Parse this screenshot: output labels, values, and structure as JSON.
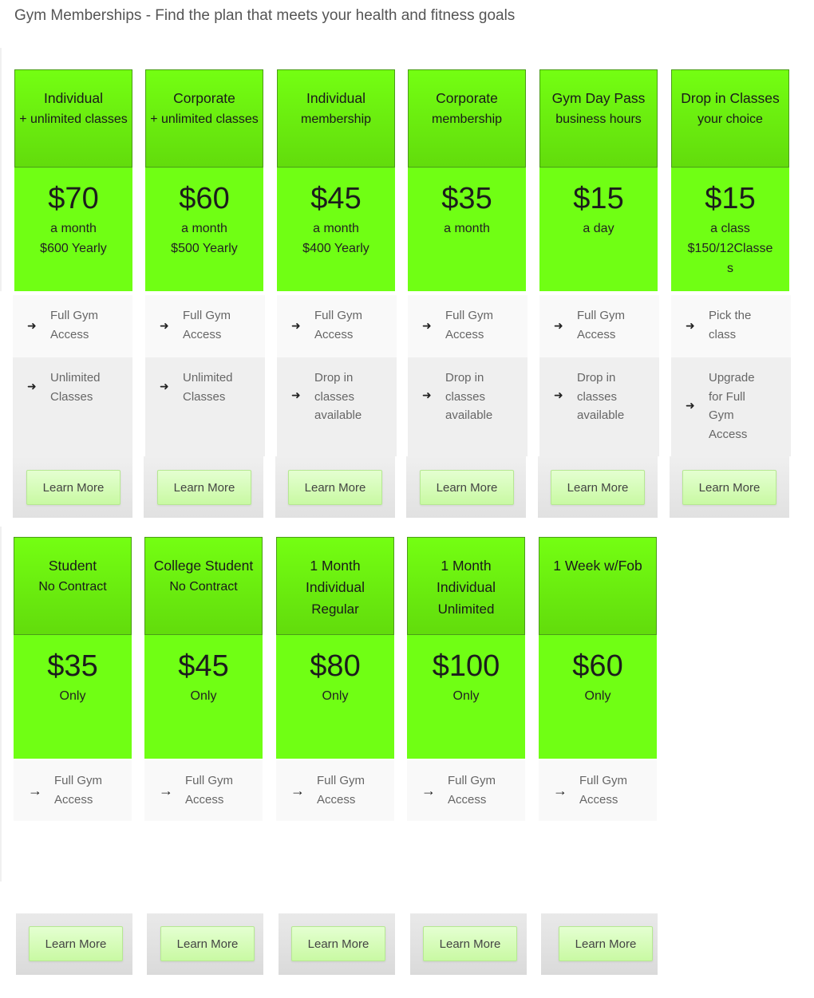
{
  "page_title": "Gym Memberships - Find the plan that meets your health and fitness goals",
  "colors": {
    "accent_green": "#70ff14",
    "button_green": "#c9f9a3"
  },
  "row1": [
    {
      "title": "Individual",
      "subtitle": "+ unlimited classes",
      "price": "$70",
      "period": "a month",
      "yearly": "$600 Yearly",
      "features": [
        "Full Gym Access",
        "Unlimited Classes"
      ],
      "button": "Learn More"
    },
    {
      "title": "Corporate",
      "subtitle": "+ unlimited classes",
      "price": "$60",
      "period": "a month",
      "yearly": "$500 Yearly",
      "features": [
        "Full Gym Access",
        "Unlimited Classes"
      ],
      "button": "Learn More"
    },
    {
      "title": "Individual",
      "subtitle": "membership",
      "price": "$45",
      "period": "a month",
      "yearly": "$400 Yearly",
      "features": [
        "Full Gym Access",
        "Drop in classes available"
      ],
      "button": "Learn More"
    },
    {
      "title": "Corporate",
      "subtitle": "membership",
      "price": "$35",
      "period": "a month",
      "yearly": "",
      "features": [
        "Full Gym Access",
        "Drop in classes available"
      ],
      "button": "Learn More"
    },
    {
      "title": "Gym Day Pass",
      "subtitle": "business hours",
      "price": "$15",
      "period": "a day",
      "yearly": "",
      "features": [
        "Full Gym Access",
        "Drop in classes available"
      ],
      "button": "Learn More"
    },
    {
      "title": "Drop in Classes",
      "subtitle": "your choice",
      "price": "$15",
      "period": "a class",
      "yearly": "$150/12Classes",
      "features": [
        "Pick the class",
        "Upgrade for Full Gym Access"
      ],
      "button": "Learn More"
    }
  ],
  "row2": [
    {
      "title": "Student",
      "subtitle": "No Contract",
      "price": "$35",
      "period": "Only",
      "features": [
        "Full Gym Access"
      ],
      "button": "Learn More"
    },
    {
      "title": "College Student",
      "subtitle": "No Contract",
      "price": "$45",
      "period": "Only",
      "features": [
        "Full Gym Access"
      ],
      "button": "Learn More"
    },
    {
      "title": "1 Month",
      "subtitle": "Individual",
      "subtitle2": "Regular",
      "price": "$80",
      "period": "Only",
      "features": [
        "Full Gym Access"
      ],
      "button": "Learn More"
    },
    {
      "title": "1 Month",
      "subtitle": "Individual",
      "subtitle2": "Unlimited",
      "price": "$100",
      "period": "Only",
      "features": [
        "Full Gym Access"
      ],
      "button": "Learn More"
    },
    {
      "title": "1 Week w/Fob",
      "subtitle": "",
      "price": "$60",
      "period": "Only",
      "features": [
        "Full Gym Access"
      ],
      "button": "Learn More"
    }
  ]
}
